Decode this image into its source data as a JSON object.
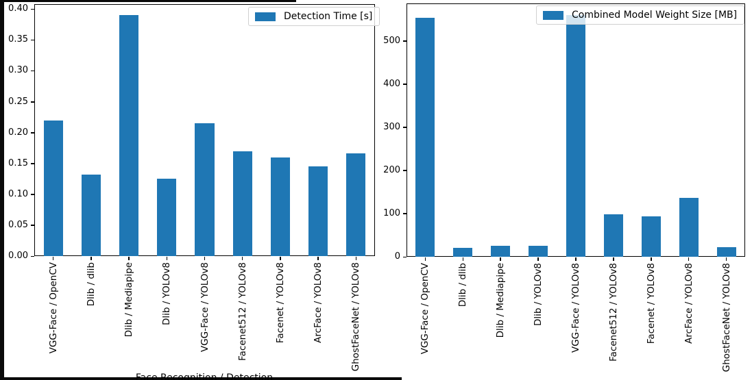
{
  "figure": {
    "background": "#ffffff",
    "bar_color": "#1f77b4",
    "spine_color": "#000000",
    "xlabel_partial": "Face Recognition / Detection"
  },
  "chart_data": [
    {
      "type": "bar",
      "title": "",
      "legend": "Detection Time [s]",
      "legend_position": "upper right",
      "grid": false,
      "xlabel": "Face Recognition / Detection",
      "ylabel": "",
      "categories": [
        "VGG-Face / OpenCV",
        "Dlib / dlib",
        "Dlib / Mediapipe",
        "Dlib / YOLOv8",
        "VGG-Face / YOLOv8",
        "Facenet512 / YOLOv8",
        "Facenet / YOLOv8",
        "ArcFace / YOLOv8",
        "GhostFaceNet / YOLOv8"
      ],
      "values": [
        0.22,
        0.132,
        0.39,
        0.125,
        0.215,
        0.17,
        0.16,
        0.145,
        0.166
      ],
      "yticks": [
        "0.00",
        "0.05",
        "0.10",
        "0.15",
        "0.20",
        "0.25",
        "0.30",
        "0.35",
        "0.40"
      ],
      "ylim": [
        0,
        0.408
      ]
    },
    {
      "type": "bar",
      "title": "",
      "legend": "Combined Model Weight Size [MB]",
      "legend_position": "upper right",
      "grid": false,
      "xlabel": "",
      "ylabel": "",
      "categories": [
        "VGG-Face / OpenCV",
        "Dlib / dlib",
        "Dlib / Mediapipe",
        "Dlib / YOLOv8",
        "VGG-Face / YOLOv8",
        "Facenet512 / YOLOv8",
        "Facenet / YOLOv8",
        "ArcFace / YOLOv8",
        "GhostFaceNet / YOLOv8"
      ],
      "values": [
        553,
        21,
        26,
        26,
        560,
        98,
        94,
        137,
        23
      ],
      "yticks": [
        "0",
        "100",
        "200",
        "300",
        "400",
        "500"
      ],
      "ylim": [
        0,
        587
      ]
    }
  ]
}
